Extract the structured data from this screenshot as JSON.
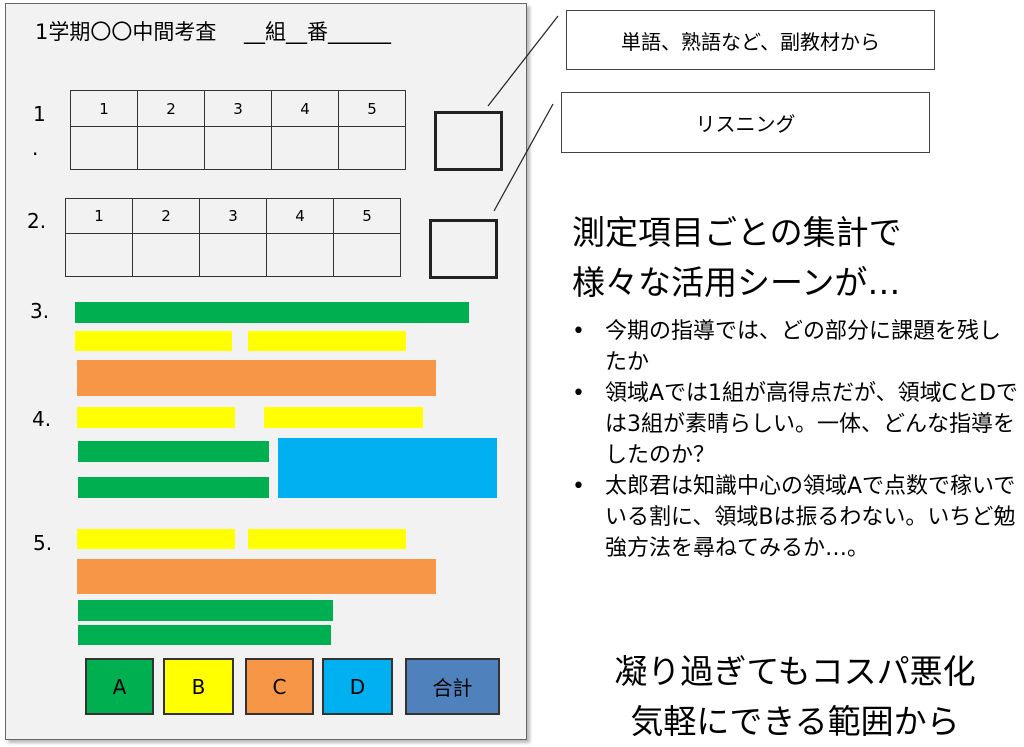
{
  "sheet": {
    "title": "1学期〇〇中間考査　 __組__番______",
    "q1_label": "1",
    "q1_dot": ".",
    "q2_label": "2.",
    "q3_label": "3.",
    "q4_label": "4.",
    "q5_label": "5.",
    "table_headers": [
      "1",
      "2",
      "3",
      "4",
      "5"
    ]
  },
  "callouts": [
    "単語、熟語など、副教材から",
    "リスニング"
  ],
  "headline": [
    "測定項目ごとの集計で",
    "様々な活用シーンが…"
  ],
  "bullets": [
    "今期の指導では、どの部分に課題を残したか",
    "領域Aでは1組が高得点だが、領域CとDでは3組が素晴らしい。一体、どんな指導をしたのか？",
    "太郎君は知識中心の領域Aで点数で稼いでいる割に、領域Bは振るわない。いちど勉強方法を尋ねてみるか…。"
  ],
  "footer": [
    "凝り過ぎてもコスパ悪化",
    "気軽にできる範囲から"
  ],
  "score_buttons": [
    {
      "label": "A",
      "color": "#00b050"
    },
    {
      "label": "B",
      "color": "#ffff00"
    },
    {
      "label": "C",
      "color": "#f79646"
    },
    {
      "label": "D",
      "color": "#00b0f0"
    },
    {
      "label": "合計",
      "color": "#4f81bd"
    }
  ],
  "colors": {
    "A": "#00b050",
    "B": "#ffff00",
    "C": "#f79646",
    "D": "#00b0f0",
    "total": "#4f81bd",
    "paper": "#f2f2f2"
  }
}
